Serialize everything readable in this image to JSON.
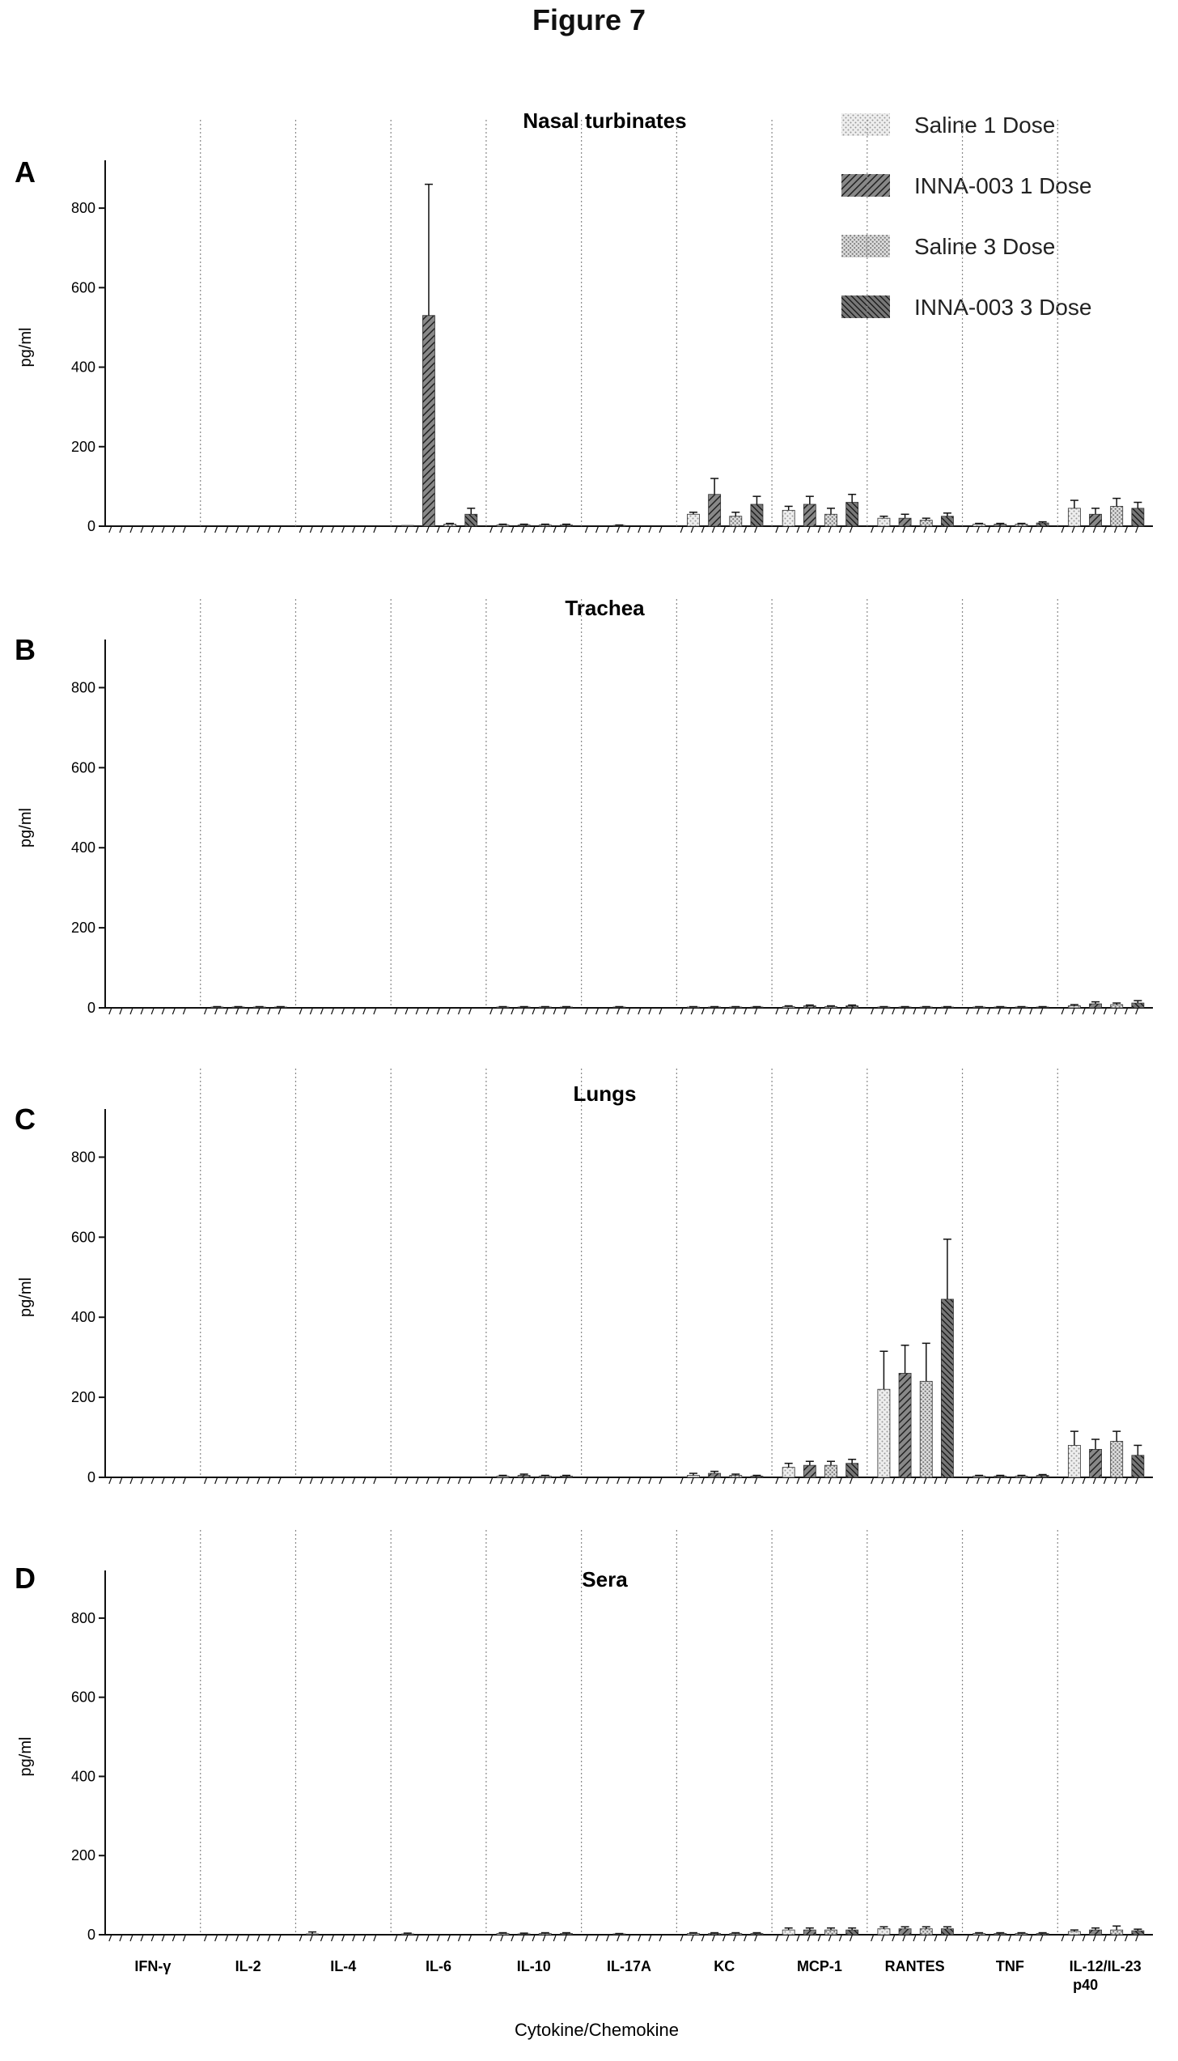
{
  "figure_title": "Figure 7",
  "colors": {
    "saline_1_dose": "#d8d8d8",
    "inna_003_1_dose": "#555555",
    "saline_3_dose": "#bdbdbd",
    "inna_003_3_dose": "#3a3a3a"
  },
  "chart_data": [
    {
      "type": "bar",
      "panel_label": "A",
      "title": "Nasal turbinates",
      "xlabel": "",
      "ylabel": "pg/ml",
      "ylim": [
        0,
        900
      ],
      "yticks": [
        "0",
        "200",
        "400",
        "600",
        "800"
      ],
      "grid": "vertical dotted separators between groups",
      "legend": "top-right",
      "categories": [
        "IFN-γ",
        "IL-2",
        "IL-4",
        "IL-6",
        "IL-10",
        "IL-17A",
        "KC",
        "MCP-1",
        "RANTES",
        "TNF",
        "IL-12/IL-23 p40"
      ],
      "series": [
        {
          "name": "Saline 1 Dose",
          "values": [
            0,
            0,
            0,
            2,
            3,
            0,
            30,
            40,
            20,
            5,
            45
          ],
          "errors": [
            0,
            0,
            0,
            0,
            2,
            0,
            5,
            10,
            5,
            2,
            20
          ]
        },
        {
          "name": "INNA-003 1 Dose",
          "values": [
            0,
            0,
            0,
            530,
            3,
            2,
            80,
            55,
            20,
            5,
            30
          ],
          "errors": [
            0,
            0,
            0,
            330,
            2,
            1,
            40,
            20,
            10,
            2,
            15
          ]
        },
        {
          "name": "Saline 3 Dose",
          "values": [
            0,
            0,
            0,
            5,
            3,
            0,
            25,
            30,
            15,
            5,
            50
          ],
          "errors": [
            0,
            0,
            0,
            2,
            2,
            0,
            10,
            15,
            5,
            2,
            20
          ]
        },
        {
          "name": "INNA-003 3 Dose",
          "values": [
            0,
            0,
            0,
            30,
            3,
            0,
            55,
            60,
            25,
            8,
            45
          ],
          "errors": [
            0,
            0,
            0,
            15,
            2,
            0,
            20,
            20,
            8,
            3,
            15
          ]
        }
      ]
    },
    {
      "type": "bar",
      "panel_label": "B",
      "title": "Trachea",
      "xlabel": "",
      "ylabel": "pg/ml",
      "ylim": [
        0,
        900
      ],
      "yticks": [
        "0",
        "200",
        "400",
        "600",
        "800"
      ],
      "categories": [
        "IFN-γ",
        "IL-2",
        "IL-4",
        "IL-6",
        "IL-10",
        "IL-17A",
        "KC",
        "MCP-1",
        "RANTES",
        "TNF",
        "IL-12/IL-23 p40"
      ],
      "series": [
        {
          "name": "Saline 1 Dose",
          "values": [
            0,
            2,
            0,
            0,
            2,
            0,
            2,
            3,
            2,
            2,
            5
          ],
          "errors": [
            0,
            1,
            0,
            0,
            1,
            0,
            1,
            2,
            1,
            1,
            3
          ]
        },
        {
          "name": "INNA-003 1 Dose",
          "values": [
            0,
            2,
            0,
            0,
            2,
            2,
            2,
            5,
            2,
            2,
            10
          ],
          "errors": [
            0,
            1,
            0,
            0,
            1,
            1,
            1,
            2,
            1,
            1,
            5
          ]
        },
        {
          "name": "Saline 3 Dose",
          "values": [
            0,
            2,
            0,
            0,
            2,
            0,
            2,
            3,
            2,
            2,
            8
          ],
          "errors": [
            0,
            1,
            0,
            0,
            1,
            0,
            1,
            2,
            1,
            1,
            4
          ]
        },
        {
          "name": "INNA-003 3 Dose",
          "values": [
            0,
            2,
            0,
            0,
            2,
            0,
            2,
            5,
            2,
            2,
            12
          ],
          "errors": [
            0,
            1,
            0,
            0,
            1,
            0,
            1,
            2,
            1,
            1,
            6
          ]
        }
      ]
    },
    {
      "type": "bar",
      "panel_label": "C",
      "title": "Lungs",
      "xlabel": "",
      "ylabel": "pg/ml",
      "ylim": [
        0,
        900
      ],
      "yticks": [
        "0",
        "200",
        "400",
        "600",
        "800"
      ],
      "categories": [
        "IFN-γ",
        "IL-2",
        "IL-4",
        "IL-6",
        "IL-10",
        "IL-17A",
        "KC",
        "MCP-1",
        "RANTES",
        "TNF",
        "IL-12/IL-23 p40"
      ],
      "series": [
        {
          "name": "Saline 1 Dose",
          "values": [
            0,
            0,
            0,
            0,
            3,
            0,
            5,
            25,
            220,
            3,
            80
          ],
          "errors": [
            0,
            0,
            0,
            0,
            2,
            0,
            5,
            10,
            95,
            2,
            35
          ]
        },
        {
          "name": "INNA-003 1 Dose",
          "values": [
            0,
            0,
            0,
            0,
            5,
            0,
            10,
            30,
            260,
            3,
            70
          ],
          "errors": [
            0,
            0,
            0,
            0,
            3,
            0,
            5,
            10,
            70,
            2,
            25
          ]
        },
        {
          "name": "Saline 3 Dose",
          "values": [
            0,
            0,
            0,
            0,
            3,
            0,
            5,
            30,
            240,
            3,
            90
          ],
          "errors": [
            0,
            0,
            0,
            0,
            2,
            0,
            3,
            10,
            95,
            2,
            25
          ]
        },
        {
          "name": "INNA-003 3 Dose",
          "values": [
            0,
            0,
            0,
            0,
            3,
            0,
            3,
            35,
            445,
            5,
            55
          ],
          "errors": [
            0,
            0,
            0,
            0,
            2,
            0,
            2,
            10,
            150,
            2,
            25
          ]
        }
      ]
    },
    {
      "type": "bar",
      "panel_label": "D",
      "title": "Sera",
      "xlabel": "Cytokine/Chemokine",
      "ylabel": "pg/ml",
      "ylim": [
        0,
        900
      ],
      "yticks": [
        "0",
        "200",
        "400",
        "600",
        "800"
      ],
      "categories": [
        "IFN-γ",
        "IL-2",
        "IL-4",
        "IL-6",
        "IL-10",
        "IL-17A",
        "KC",
        "MCP-1",
        "RANTES",
        "TNF",
        "IL-12/IL-23 p40"
      ],
      "category_display": [
        "IFN-γ",
        "IL-2",
        "IL-4",
        "IL-6",
        "IL-10",
        "IL-17A",
        "KC",
        "MCP-1",
        "RANTES",
        "TNF",
        "IL-12/IL-23"
      ],
      "category_sub": [
        "",
        "",
        "",
        "",
        "",
        "",
        "",
        "",
        "",
        "",
        "p40"
      ],
      "series": [
        {
          "name": "Saline 1 Dose",
          "values": [
            0,
            0,
            2,
            2,
            3,
            0,
            3,
            12,
            15,
            3,
            8
          ],
          "errors": [
            0,
            0,
            5,
            2,
            2,
            0,
            2,
            5,
            5,
            2,
            4
          ]
        },
        {
          "name": "INNA-003 1 Dose",
          "values": [
            0,
            0,
            0,
            0,
            2,
            2,
            3,
            12,
            15,
            3,
            12
          ],
          "errors": [
            0,
            0,
            0,
            0,
            2,
            1,
            2,
            5,
            5,
            2,
            5
          ]
        },
        {
          "name": "Saline 3 Dose",
          "values": [
            0,
            0,
            0,
            0,
            3,
            0,
            3,
            12,
            15,
            3,
            12
          ],
          "errors": [
            0,
            0,
            0,
            0,
            2,
            0,
            2,
            5,
            5,
            2,
            10
          ]
        },
        {
          "name": "INNA-003 3 Dose",
          "values": [
            0,
            0,
            0,
            0,
            3,
            0,
            3,
            12,
            15,
            3,
            10
          ],
          "errors": [
            0,
            0,
            0,
            0,
            2,
            0,
            2,
            5,
            5,
            2,
            4
          ]
        }
      ]
    }
  ]
}
